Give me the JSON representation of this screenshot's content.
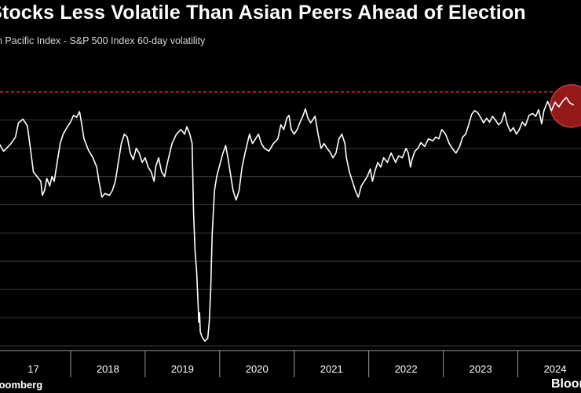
{
  "header": {
    "title": "Stocks Less Volatile Than Asian Peers Ahead of Election",
    "subtitle": "n Pacific Index - S&P 500 Index 60-day volatility"
  },
  "footer": {
    "source": "loomberg",
    "logo": "Bloom"
  },
  "colors": {
    "background": "#000000",
    "line": "#ffffff",
    "grid": "#3a3a3a",
    "threshold": "#e03a3a",
    "highlight_fill": "#9c1c1c",
    "highlight_stroke": "#d23b3b"
  },
  "chart_data": {
    "type": "line",
    "title": "Stocks Less Volatile Than Asian Peers Ahead of Election",
    "subtitle": "n Pacific Index - S&P 500 Index 60-day volatility",
    "xlabel": "",
    "ylabel": "",
    "x_tick_labels": [
      "17",
      "2018",
      "2019",
      "2020",
      "2021",
      "2022",
      "2023",
      "2024"
    ],
    "xlim": [
      2017.0,
      2024.9
    ],
    "ylim": [
      -24.5,
      6.5
    ],
    "grid": true,
    "threshold": {
      "value": 3,
      "style": "dashed"
    },
    "highlight": {
      "x": 2024.72,
      "y": 1.5
    },
    "series": [
      {
        "points": [
          [
            2017.0,
            -2.2
          ],
          [
            2017.05,
            -2.6
          ],
          [
            2017.1,
            -3.3
          ],
          [
            2017.14,
            -3.0
          ],
          [
            2017.2,
            -2.5
          ],
          [
            2017.26,
            -1.8
          ],
          [
            2017.3,
            -0.3
          ],
          [
            2017.36,
            0.1
          ],
          [
            2017.42,
            -0.6
          ],
          [
            2017.46,
            -3.0
          ],
          [
            2017.5,
            -5.5
          ],
          [
            2017.55,
            -6.0
          ],
          [
            2017.6,
            -6.5
          ],
          [
            2017.62,
            -8.0
          ],
          [
            2017.65,
            -7.5
          ],
          [
            2017.68,
            -6.2
          ],
          [
            2017.72,
            -7.0
          ],
          [
            2017.75,
            -6.0
          ],
          [
            2017.78,
            -6.5
          ],
          [
            2017.82,
            -4.5
          ],
          [
            2017.86,
            -2.5
          ],
          [
            2017.9,
            -1.5
          ],
          [
            2017.95,
            -0.8
          ],
          [
            2018.0,
            -0.2
          ],
          [
            2018.04,
            0.5
          ],
          [
            2018.08,
            0.3
          ],
          [
            2018.12,
            0.9
          ],
          [
            2018.15,
            -0.5
          ],
          [
            2018.18,
            -2.0
          ],
          [
            2018.24,
            -3.2
          ],
          [
            2018.3,
            -4.0
          ],
          [
            2018.35,
            -5.0
          ],
          [
            2018.38,
            -6.5
          ],
          [
            2018.42,
            -8.2
          ],
          [
            2018.46,
            -7.8
          ],
          [
            2018.52,
            -8.0
          ],
          [
            2018.56,
            -7.5
          ],
          [
            2018.6,
            -6.5
          ],
          [
            2018.64,
            -4.5
          ],
          [
            2018.68,
            -2.5
          ],
          [
            2018.72,
            -1.5
          ],
          [
            2018.76,
            -1.8
          ],
          [
            2018.8,
            -3.5
          ],
          [
            2018.84,
            -4.2
          ],
          [
            2018.88,
            -3.0
          ],
          [
            2018.92,
            -3.5
          ],
          [
            2018.96,
            -4.5
          ],
          [
            2019.0,
            -4.0
          ],
          [
            2019.04,
            -5.0
          ],
          [
            2019.08,
            -5.5
          ],
          [
            2019.12,
            -6.5
          ],
          [
            2019.14,
            -5.0
          ],
          [
            2019.18,
            -4.0
          ],
          [
            2019.22,
            -5.5
          ],
          [
            2019.26,
            -6.0
          ],
          [
            2019.3,
            -4.5
          ],
          [
            2019.36,
            -2.5
          ],
          [
            2019.42,
            -1.5
          ],
          [
            2019.48,
            -1.0
          ],
          [
            2019.53,
            -1.5
          ],
          [
            2019.56,
            -0.7
          ],
          [
            2019.6,
            -1.5
          ],
          [
            2019.63,
            -2.5
          ],
          [
            2019.65,
            -10.0
          ],
          [
            2019.67,
            -14.0
          ],
          [
            2019.69,
            -16.0
          ],
          [
            2019.71,
            -19.5
          ],
          [
            2019.72,
            -21.5
          ],
          [
            2019.73,
            -20.5
          ],
          [
            2019.74,
            -22.5
          ],
          [
            2019.76,
            -23.0
          ],
          [
            2019.8,
            -23.5
          ],
          [
            2019.84,
            -23.2
          ],
          [
            2019.86,
            -21.5
          ],
          [
            2019.88,
            -18.0
          ],
          [
            2019.9,
            -12.0
          ],
          [
            2019.93,
            -7.5
          ],
          [
            2019.96,
            -6.0
          ],
          [
            2020.0,
            -4.8
          ],
          [
            2020.04,
            -3.6
          ],
          [
            2020.08,
            -2.7
          ],
          [
            2020.11,
            -4.0
          ],
          [
            2020.14,
            -5.5
          ],
          [
            2020.18,
            -7.5
          ],
          [
            2020.22,
            -8.5
          ],
          [
            2020.26,
            -7.5
          ],
          [
            2020.3,
            -5.0
          ],
          [
            2020.34,
            -3.5
          ],
          [
            2020.4,
            -1.5
          ],
          [
            2020.44,
            -2.5
          ],
          [
            2020.48,
            -2.0
          ],
          [
            2020.52,
            -1.5
          ],
          [
            2020.56,
            -2.5
          ],
          [
            2020.6,
            -3.0
          ],
          [
            2020.66,
            -3.3
          ],
          [
            2020.72,
            -2.5
          ],
          [
            2020.78,
            -2.0
          ],
          [
            2020.82,
            -0.5
          ],
          [
            2020.86,
            -1.0
          ],
          [
            2020.9,
            0.2
          ],
          [
            2020.93,
            0.5
          ],
          [
            2020.96,
            -1.0
          ],
          [
            2021.0,
            -1.5
          ],
          [
            2021.04,
            -1.0
          ],
          [
            2021.08,
            -0.2
          ],
          [
            2021.12,
            0.5
          ],
          [
            2021.15,
            1.2
          ],
          [
            2021.18,
            0.3
          ],
          [
            2021.22,
            -0.3
          ],
          [
            2021.28,
            0.4
          ],
          [
            2021.32,
            -1.5
          ],
          [
            2021.36,
            -3.0
          ],
          [
            2021.4,
            -2.5
          ],
          [
            2021.44,
            -3.0
          ],
          [
            2021.48,
            -3.4
          ],
          [
            2021.52,
            -4.0
          ],
          [
            2021.56,
            -3.5
          ],
          [
            2021.6,
            -2.0
          ],
          [
            2021.64,
            -1.5
          ],
          [
            2021.68,
            -2.5
          ],
          [
            2021.7,
            -4.0
          ],
          [
            2021.74,
            -5.5
          ],
          [
            2021.78,
            -6.5
          ],
          [
            2021.82,
            -7.5
          ],
          [
            2021.86,
            -8.2
          ],
          [
            2021.9,
            -7.0
          ],
          [
            2021.94,
            -6.5
          ],
          [
            2021.98,
            -6.0
          ],
          [
            2022.02,
            -5.2
          ],
          [
            2022.05,
            -6.5
          ],
          [
            2022.08,
            -5.5
          ],
          [
            2022.12,
            -4.5
          ],
          [
            2022.16,
            -5.0
          ],
          [
            2022.2,
            -4.0
          ],
          [
            2022.25,
            -4.5
          ],
          [
            2022.3,
            -3.5
          ],
          [
            2022.36,
            -4.5
          ],
          [
            2022.4,
            -3.8
          ],
          [
            2022.45,
            -4.0
          ],
          [
            2022.5,
            -3.0
          ],
          [
            2022.53,
            -3.5
          ],
          [
            2022.56,
            -5.0
          ],
          [
            2022.58,
            -4.2
          ],
          [
            2022.62,
            -3.3
          ],
          [
            2022.66,
            -3.0
          ],
          [
            2022.7,
            -2.4
          ],
          [
            2022.75,
            -2.8
          ],
          [
            2022.8,
            -2.0
          ],
          [
            2022.86,
            -2.2
          ],
          [
            2022.9,
            -1.8
          ],
          [
            2022.94,
            -2.0
          ],
          [
            2022.98,
            -1.0
          ],
          [
            2023.03,
            -1.5
          ],
          [
            2023.08,
            -2.5
          ],
          [
            2023.12,
            -3.0
          ],
          [
            2023.17,
            -3.5
          ],
          [
            2023.22,
            -2.8
          ],
          [
            2023.26,
            -1.8
          ],
          [
            2023.3,
            -1.5
          ],
          [
            2023.34,
            -0.5
          ],
          [
            2023.38,
            0.6
          ],
          [
            2023.42,
            1.0
          ],
          [
            2023.46,
            0.8
          ],
          [
            2023.5,
            0.3
          ],
          [
            2023.54,
            -0.3
          ],
          [
            2023.58,
            0.2
          ],
          [
            2023.62,
            -0.2
          ],
          [
            2023.66,
            0.4
          ],
          [
            2023.7,
            0.0
          ],
          [
            2023.74,
            -0.5
          ],
          [
            2023.78,
            -0.2
          ],
          [
            2023.82,
            0.8
          ],
          [
            2023.86,
            -0.5
          ],
          [
            2023.9,
            -1.2
          ],
          [
            2023.94,
            -0.8
          ],
          [
            2023.98,
            -1.5
          ],
          [
            2024.02,
            -1.0
          ],
          [
            2024.06,
            -0.2
          ],
          [
            2024.1,
            -0.6
          ],
          [
            2024.15,
            0.5
          ],
          [
            2024.2,
            0.7
          ],
          [
            2024.24,
            0.4
          ],
          [
            2024.28,
            1.1
          ],
          [
            2024.32,
            -0.4
          ],
          [
            2024.35,
            1.0
          ],
          [
            2024.4,
            2.0
          ],
          [
            2024.45,
            1.0
          ],
          [
            2024.5,
            1.9
          ],
          [
            2024.55,
            1.4
          ],
          [
            2024.6,
            2.0
          ],
          [
            2024.65,
            2.4
          ],
          [
            2024.7,
            1.8
          ],
          [
            2024.75,
            1.6
          ]
        ]
      }
    ]
  }
}
